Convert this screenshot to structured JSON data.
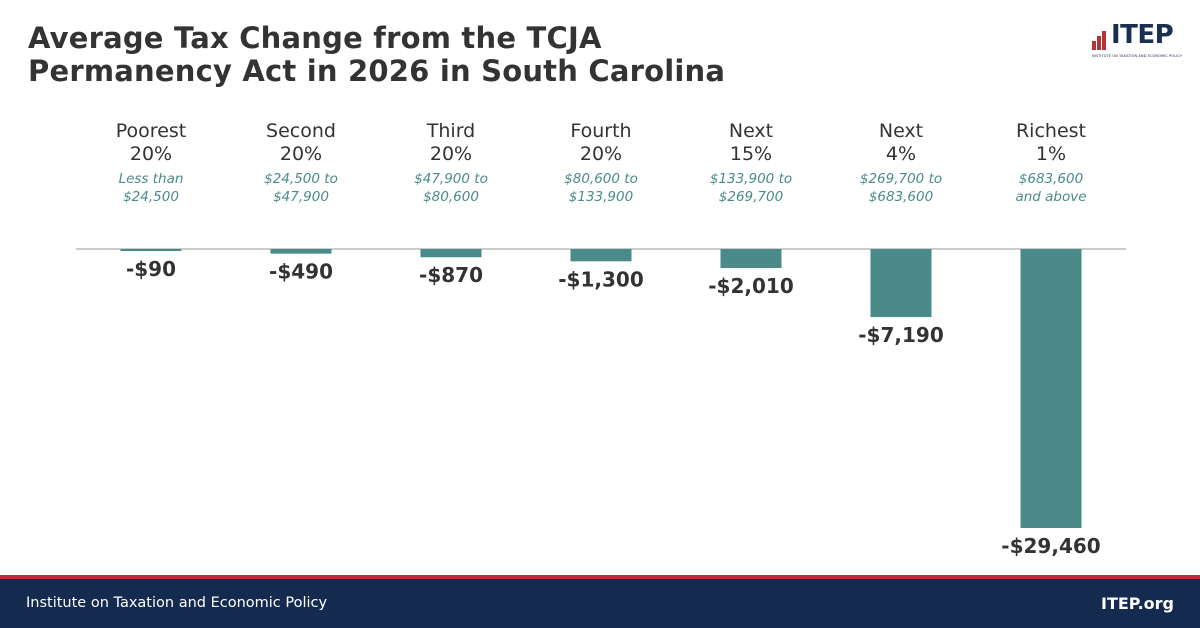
{
  "header": {
    "title_line1": "Average Tax Change from the TCJA",
    "title_line2": "Permanency Act in 2026 in South Carolina"
  },
  "logo": {
    "text": "ITEP",
    "tagline": "INSTITUTE ON TAXATION AND ECONOMIC POLICY",
    "colors": {
      "bars": "#b53335",
      "text": "#1b2f52"
    }
  },
  "footer": {
    "org_name": "Institute on Taxation and Economic Policy",
    "site": "ITEP.org"
  },
  "colors": {
    "bar": "#4a8b8a",
    "range_text": "#4a8b8a",
    "footer_bg": "#152a4f",
    "footer_accent": "#b53335"
  },
  "chart_data": {
    "type": "bar",
    "title": "Average Tax Change from the TCJA Permanency Act in 2026 in South Carolina",
    "categories": [
      {
        "name_line1": "Poorest",
        "name_line2": "20%",
        "range_line1": "Less than",
        "range_line2": "$24,500"
      },
      {
        "name_line1": "Second",
        "name_line2": "20%",
        "range_line1": "$24,500 to",
        "range_line2": "$47,900"
      },
      {
        "name_line1": "Third",
        "name_line2": "20%",
        "range_line1": "$47,900 to",
        "range_line2": "$80,600"
      },
      {
        "name_line1": "Fourth",
        "name_line2": "20%",
        "range_line1": "$80,600 to",
        "range_line2": "$133,900"
      },
      {
        "name_line1": "Next",
        "name_line2": "15%",
        "range_line1": "$133,900 to",
        "range_line2": "$269,700"
      },
      {
        "name_line1": "Next",
        "name_line2": "4%",
        "range_line1": "$269,700 to",
        "range_line2": "$683,600"
      },
      {
        "name_line1": "Richest",
        "name_line2": "1%",
        "range_line1": "$683,600",
        "range_line2": "and above"
      }
    ],
    "values": [
      -90,
      -490,
      -870,
      -1300,
      -2010,
      -7190,
      -29460
    ],
    "labels": [
      "-$90",
      "-$490",
      "-$870",
      "-$1,300",
      "-$2,010",
      "-$7,190",
      "-$29,460"
    ],
    "ylim": [
      -29460,
      0
    ],
    "grid": false,
    "legend": "none"
  }
}
